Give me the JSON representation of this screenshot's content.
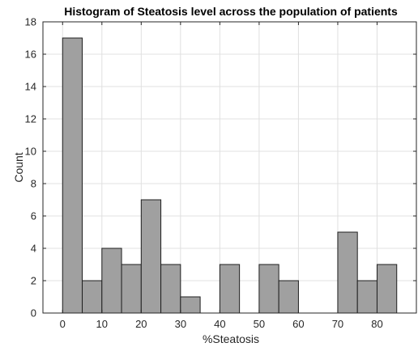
{
  "chart_data": {
    "type": "bar",
    "title": "Histogram of Steatosis level across the population of patients",
    "xlabel": "%Steatosis",
    "ylabel": "Count",
    "bin_width": 5,
    "bins": [
      {
        "start": 0,
        "end": 5,
        "count": 17
      },
      {
        "start": 5,
        "end": 10,
        "count": 2
      },
      {
        "start": 10,
        "end": 15,
        "count": 4
      },
      {
        "start": 15,
        "end": 20,
        "count": 3
      },
      {
        "start": 20,
        "end": 25,
        "count": 7
      },
      {
        "start": 25,
        "end": 30,
        "count": 3
      },
      {
        "start": 30,
        "end": 35,
        "count": 1
      },
      {
        "start": 35,
        "end": 40,
        "count": 0
      },
      {
        "start": 40,
        "end": 45,
        "count": 3
      },
      {
        "start": 45,
        "end": 50,
        "count": 0
      },
      {
        "start": 50,
        "end": 55,
        "count": 3
      },
      {
        "start": 55,
        "end": 60,
        "count": 2
      },
      {
        "start": 60,
        "end": 65,
        "count": 0
      },
      {
        "start": 65,
        "end": 70,
        "count": 0
      },
      {
        "start": 70,
        "end": 75,
        "count": 5
      },
      {
        "start": 75,
        "end": 80,
        "count": 2
      },
      {
        "start": 80,
        "end": 85,
        "count": 3
      }
    ],
    "xlim": [
      -5,
      90
    ],
    "ylim": [
      0,
      18
    ],
    "xticks": [
      0,
      10,
      20,
      30,
      40,
      50,
      60,
      70,
      80
    ],
    "yticks": [
      0,
      2,
      4,
      6,
      8,
      10,
      12,
      14,
      16,
      18
    ],
    "grid": true,
    "colors": {
      "bar_fill": "#a0a0a0",
      "bar_edge": "#1f1f1f",
      "grid": "#e0e0e0",
      "axis": "#262626"
    }
  }
}
